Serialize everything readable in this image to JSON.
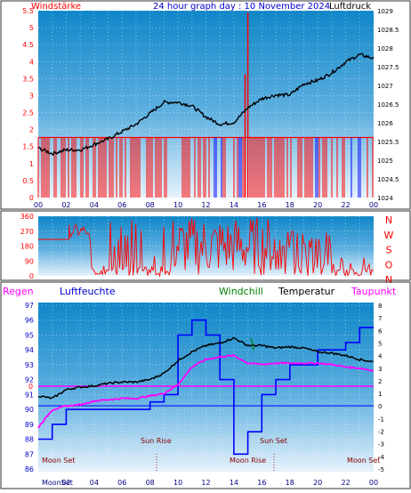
{
  "top_chart": {
    "title": "24 hour graph day : 10 November 2024",
    "left_label": "Windstärke",
    "right_label": "Luftdruck",
    "y_left_ticks": [
      "5.5",
      "5",
      "4.5",
      "4",
      "3.5",
      "3",
      "2.5",
      "2",
      "1.5",
      "1",
      "0.5",
      "0"
    ],
    "y_right_ticks": [
      "1029",
      "1028.5",
      "1028",
      "1027.5",
      "1027",
      "1026.5",
      "1026",
      "1025.5",
      "1025",
      "1024.5",
      "1024"
    ],
    "x_ticks": [
      "00",
      "02",
      "04",
      "06",
      "08",
      "10",
      "12",
      "14",
      "16",
      "18",
      "20",
      "22",
      "00"
    ],
    "colors": {
      "wind": "#ff0000",
      "gust_marker": "#0000ff",
      "pressure": "#000000",
      "background_top": "#0f87c8",
      "background_bottom": "#e6f2fb"
    }
  },
  "direction_chart": {
    "y_ticks": [
      "360",
      "270",
      "180",
      "90",
      "0"
    ],
    "compass": [
      "N",
      "W",
      "S",
      "O",
      "N"
    ],
    "colors": {
      "line": "#ff0000",
      "background_top": "#0f87c8",
      "background_bottom": "#e6f2fb"
    }
  },
  "bottom_chart": {
    "labels": {
      "regen": "Regen",
      "luftfeuchte": "Luftfeuchte",
      "windchill": "Windchill",
      "temperatur": "Temperatur",
      "taupunkt": "Taupunkt"
    },
    "y_left_ticks": [
      "97",
      "96",
      "95",
      "94",
      "93",
      "92",
      "91",
      "90",
      "89",
      "88",
      "87",
      "86"
    ],
    "y_right_ticks": [
      "8",
      "7",
      "6",
      "5",
      "4",
      "3",
      "2",
      "1",
      "0",
      "-1",
      "-2",
      "-3",
      "-4",
      "-5"
    ],
    "zero_marker": "0",
    "events": {
      "moon_set_1": "Moon Set",
      "sun_rise": "Sun Rise",
      "moon_rise": "Moon Rise",
      "sun_set": "Sun Set",
      "moon_set_2": "Moon Set"
    },
    "x_ticks": [
      "MoonSet",
      "02",
      "04",
      "06",
      "08",
      "10",
      "12",
      "14",
      "16",
      "18",
      "20",
      "22",
      "00"
    ],
    "colors": {
      "regen": "#ff00ff",
      "luftfeuchte": "#0000ff",
      "windchill": "#008000",
      "temperatur": "#000000",
      "taupunkt": "#ff00ff",
      "humidity_line": "#0000ff"
    }
  },
  "chart_data": [
    {
      "type": "line",
      "x": [
        0,
        1,
        2,
        3,
        4,
        5,
        6,
        7,
        8,
        9,
        10,
        11,
        12,
        13,
        14,
        15,
        16,
        17,
        18,
        19,
        20,
        21,
        22,
        23,
        24
      ],
      "series": [
        {
          "name": "Luftdruck",
          "values": [
            1025.35,
            1025.2,
            1025.3,
            1025.3,
            1025.45,
            1025.6,
            1025.8,
            1026.0,
            1026.3,
            1026.6,
            1026.6,
            1026.5,
            1026.2,
            1026.0,
            1026.05,
            1026.45,
            1026.7,
            1026.8,
            1026.8,
            1027.1,
            1027.2,
            1027.4,
            1027.7,
            1027.9,
            1027.8
          ]
        },
        {
          "name": "Windstärke",
          "values": [
            1.8,
            1.8,
            1.8,
            1.8,
            1.8,
            1.8,
            1.8,
            1.8,
            1.8,
            1.8,
            1.8,
            1.8,
            1.8,
            1.8,
            1.8,
            5.5,
            1.8,
            1.8,
            1.8,
            1.8,
            1.8,
            1.8,
            1.8,
            1.8,
            1.8
          ]
        }
      ],
      "ylim_left": [
        0,
        5.6
      ],
      "ylim_right": [
        1024,
        1029.1
      ]
    },
    {
      "type": "line",
      "x": [
        0,
        2,
        4,
        6,
        8,
        10,
        12,
        14,
        16,
        18,
        20,
        22,
        24
      ],
      "series": [
        {
          "name": "Windrichtung",
          "values": [
            220,
            0,
            0,
            60,
            300,
            40,
            260,
            280,
            330,
            160,
            200,
            40,
            90
          ]
        }
      ],
      "ylim": [
        0,
        360
      ]
    },
    {
      "type": "line",
      "x": [
        0,
        1,
        2,
        3,
        4,
        5,
        6,
        7,
        8,
        9,
        10,
        11,
        12,
        13,
        14,
        15,
        16,
        17,
        18,
        19,
        20,
        21,
        22,
        23,
        24
      ],
      "series": [
        {
          "name": "Temperatur",
          "values": [
            0.8,
            0.6,
            1.3,
            1.5,
            1.6,
            1.8,
            1.9,
            1.9,
            2.1,
            2.6,
            3.6,
            4.3,
            4.8,
            5.0,
            5.4,
            4.8,
            4.8,
            4.6,
            4.7,
            4.6,
            4.3,
            4.2,
            4.0,
            3.7,
            3.5
          ]
        },
        {
          "name": "Taupunkt",
          "values": [
            -1.7,
            -0.3,
            0.0,
            0.1,
            0.4,
            0.5,
            0.6,
            0.6,
            0.8,
            1.0,
            1.7,
            3.1,
            3.7,
            3.9,
            4.0,
            3.4,
            3.3,
            3.4,
            3.4,
            3.4,
            3.4,
            3.3,
            3.1,
            3.0,
            2.8
          ]
        },
        {
          "name": "Luftfeuchte",
          "values": [
            88,
            89,
            90,
            90,
            90,
            90,
            90,
            90,
            90.5,
            91,
            95,
            96,
            95,
            92,
            87,
            88.5,
            91,
            92,
            93,
            93,
            94,
            94,
            94.5,
            95.5,
            95.5
          ]
        },
        {
          "name": "Regen",
          "values": [
            0,
            0,
            0,
            0,
            0,
            0,
            0,
            0,
            0,
            0,
            0,
            0,
            0,
            0,
            0,
            0,
            0,
            0,
            0,
            0,
            0,
            0,
            0,
            0,
            0
          ]
        }
      ],
      "ylim_left": [
        86,
        97.2
      ],
      "ylim_right": [
        -5,
        8.2
      ]
    }
  ]
}
